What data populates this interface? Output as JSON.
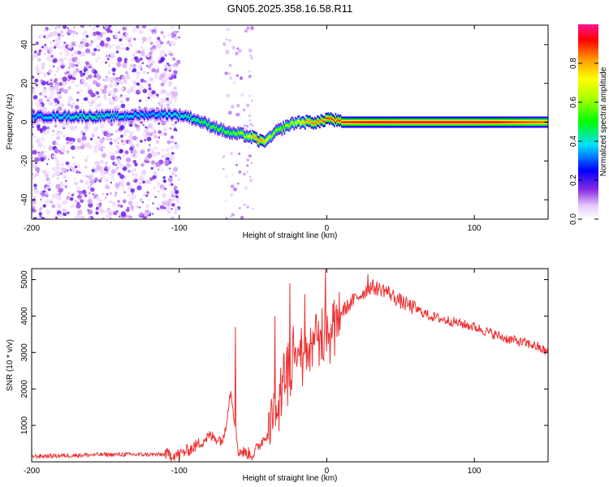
{
  "title": "GN05.2025.358.16.58.R11",
  "chart_data": [
    {
      "type": "heatmap",
      "name": "spectrogram",
      "xlabel": "Height of straight line (km)",
      "ylabel": "Frequency (Hz)",
      "xlim": [
        -200,
        150
      ],
      "ylim": [
        -50,
        50
      ],
      "xticks": [
        -200,
        -100,
        0,
        100
      ],
      "yticks": [
        -40,
        -20,
        0,
        20,
        40
      ],
      "colorbar": {
        "label": "Normalized spectral amplitude",
        "range": [
          0,
          1
        ],
        "ticks": [
          0.0,
          0.2,
          0.4,
          0.6,
          0.8
        ],
        "tick_labels": [
          "0.0",
          "0.2",
          "0.4",
          "0.6",
          "0.8"
        ]
      },
      "ridge": {
        "x": [
          -200,
          -180,
          -160,
          -140,
          -120,
          -105,
          -95,
          -85,
          -75,
          -65,
          -60,
          -55,
          -50,
          -45,
          -40,
          -35,
          -30,
          -25,
          -20,
          -15,
          -10,
          -5,
          0,
          5,
          10,
          50,
          100,
          150
        ],
        "frequency_hz": [
          3,
          3,
          3,
          3,
          4,
          4,
          3,
          0,
          -3,
          -6,
          -6,
          -7,
          -8,
          -10,
          -9,
          -5,
          -3,
          -1,
          0,
          0,
          0,
          0,
          2,
          1,
          0,
          0,
          0,
          0
        ],
        "amplitude": [
          0.35,
          0.4,
          0.45,
          0.4,
          0.35,
          0.4,
          0.45,
          0.5,
          0.55,
          0.55,
          0.6,
          0.65,
          0.8,
          0.85,
          0.7,
          0.6,
          0.6,
          0.65,
          0.7,
          0.8,
          0.85,
          0.85,
          0.9,
          0.9,
          0.9,
          0.95,
          0.95,
          0.85
        ]
      },
      "noise_region_x": [
        -200,
        -100
      ]
    },
    {
      "type": "line",
      "name": "snr",
      "xlabel": "Height of straight line (km)",
      "ylabel": "SNR (10 * v/v)",
      "xlim": [
        -200,
        150
      ],
      "ylim": [
        0,
        5300
      ],
      "xticks": [
        -200,
        -100,
        0,
        100
      ],
      "yticks": [
        1000,
        2000,
        3000,
        4000,
        5000
      ],
      "color": "#ee3333",
      "envelope": {
        "x": [
          -200,
          -150,
          -110,
          -100,
          -90,
          -80,
          -70,
          -65,
          -60,
          -50,
          -40,
          -35,
          -30,
          -25,
          -20,
          -10,
          0,
          10,
          20,
          30,
          40,
          50,
          70,
          100,
          120,
          140,
          150
        ],
        "y": [
          150,
          200,
          200,
          200,
          400,
          700,
          600,
          2000,
          300,
          200,
          800,
          1500,
          2200,
          3000,
          3200,
          3600,
          3800,
          4100,
          4500,
          4800,
          4700,
          4400,
          4000,
          3700,
          3400,
          3200,
          3000
        ]
      },
      "spikes": [
        {
          "x": -62,
          "y": 3700
        },
        {
          "x": -35,
          "y": 4000
        },
        {
          "x": -25,
          "y": 4900
        },
        {
          "x": -15,
          "y": 4600
        },
        {
          "x": -1,
          "y": 5300
        },
        {
          "x": 28,
          "y": 5150
        }
      ]
    }
  ]
}
